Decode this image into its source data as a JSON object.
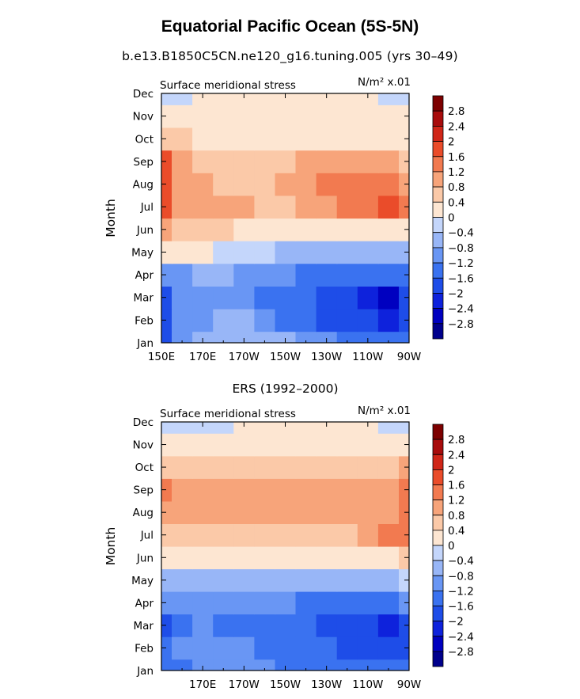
{
  "page": {
    "title": "Equatorial Pacific Ocean (5S-5N)",
    "subtitle": "b.e13.B1850C5CN.ne120_g16.tuning.005 (yrs 30–49)"
  },
  "colors": {
    "levels": [
      "#00008c",
      "#0000c0",
      "#0e22dc",
      "#1e4de8",
      "#3a72f0",
      "#6996f4",
      "#98b6f7",
      "#c4d6fb",
      "#fde6d2",
      "#fbc9a8",
      "#f7a47a",
      "#f27a50",
      "#ea4c2a",
      "#d02618",
      "#a80c0c",
      "#7d0000"
    ]
  },
  "chart_data": [
    {
      "type": "heatmap",
      "name": "model",
      "panel_label": "",
      "title": "Surface meridional stress",
      "units_label": "N/m² x.01",
      "ylabel": "Month",
      "xlabel": "",
      "x_ticks": [
        "150E",
        "170E",
        "170W",
        "150W",
        "130W",
        "110W",
        "90W"
      ],
      "y_ticks": [
        "Jan",
        "Feb",
        "Mar",
        "Apr",
        "May",
        "Jun",
        "Jul",
        "Aug",
        "Sep",
        "Oct",
        "Nov",
        "Dec"
      ],
      "longitudes": [
        150,
        160,
        170,
        180,
        190,
        200,
        210,
        220,
        230,
        240,
        250,
        260,
        270
      ],
      "contour_levels": [
        -2.8,
        -2.4,
        -2,
        -1.6,
        -1.2,
        -0.8,
        -0.4,
        0,
        0.4,
        0.8,
        1.2,
        1.6,
        2,
        2.4,
        2.8
      ],
      "colorbar_labels": [
        "2.8",
        "2.4",
        "2",
        "1.6",
        "1.2",
        "0.8",
        "0.4",
        "0",
        "−0.4",
        "−0.8",
        "−1.2",
        "−1.6",
        "−2",
        "−2.4",
        "−2.8"
      ],
      "values": [
        [
          -1.8,
          -1.0,
          -0.7,
          -0.5,
          -0.5,
          -0.6,
          -0.8,
          -1.0,
          -1.2,
          -1.4,
          -1.5,
          -1.6,
          -1.5
        ],
        [
          -1.7,
          -1.1,
          -0.9,
          -0.8,
          -0.8,
          -1.0,
          -1.3,
          -1.5,
          -1.7,
          -1.8,
          -1.9,
          -2.1,
          -1.8
        ],
        [
          -1.7,
          -1.2,
          -1.1,
          -1.1,
          -1.1,
          -1.3,
          -1.5,
          -1.6,
          -1.8,
          -2.0,
          -2.2,
          -2.5,
          -2.0
        ],
        [
          -1.0,
          -0.9,
          -0.8,
          -0.8,
          -0.9,
          -1.0,
          -1.2,
          -1.3,
          -1.5,
          -1.6,
          -1.6,
          -1.6,
          -1.4
        ],
        [
          0.3,
          0.2,
          0.1,
          -0.1,
          -0.3,
          -0.4,
          -0.5,
          -0.6,
          -0.7,
          -0.8,
          -0.8,
          -0.8,
          -0.7
        ],
        [
          0.8,
          0.6,
          0.5,
          0.4,
          0.3,
          0.2,
          0.1,
          0.0,
          0.0,
          0.1,
          0.1,
          0.1,
          0.1
        ],
        [
          1.6,
          1.0,
          0.8,
          0.8,
          0.8,
          0.7,
          0.7,
          0.8,
          0.9,
          1.2,
          1.4,
          1.6,
          1.5
        ],
        [
          1.9,
          1.0,
          0.8,
          0.7,
          0.6,
          0.7,
          0.9,
          1.0,
          1.2,
          1.3,
          1.3,
          1.4,
          1.1
        ],
        [
          1.6,
          0.9,
          0.6,
          0.5,
          0.5,
          0.6,
          0.7,
          0.8,
          0.9,
          0.9,
          0.8,
          0.8,
          0.7
        ],
        [
          0.6,
          0.4,
          0.3,
          0.3,
          0.3,
          0.3,
          0.3,
          0.3,
          0.3,
          0.3,
          0.2,
          0.2,
          0.2
        ],
        [
          0.2,
          0.2,
          0.2,
          0.2,
          0.2,
          0.2,
          0.2,
          0.2,
          0.2,
          0.2,
          0.2,
          0.2,
          0.1
        ],
        [
          -0.3,
          -0.1,
          0.1,
          0.2,
          0.2,
          0.2,
          0.2,
          0.2,
          0.2,
          0.1,
          0.1,
          -0.1,
          -0.2
        ]
      ]
    },
    {
      "type": "heatmap",
      "name": "obs",
      "panel_label": "ERS (1992–2000)",
      "title": "Surface meridional stress",
      "units_label": "N/m² x.01",
      "ylabel": "Month",
      "xlabel": "",
      "x_ticks": [
        "170E",
        "170W",
        "150W",
        "130W",
        "110W",
        "90W"
      ],
      "y_ticks": [
        "Jan",
        "Feb",
        "Mar",
        "Apr",
        "May",
        "Jun",
        "Jul",
        "Aug",
        "Sep",
        "Oct",
        "Nov",
        "Dec"
      ],
      "longitudes": [
        150,
        160,
        170,
        180,
        190,
        200,
        210,
        220,
        230,
        240,
        250,
        260,
        270
      ],
      "contour_levels": [
        -2.8,
        -2.4,
        -2,
        -1.6,
        -1.2,
        -0.8,
        -0.4,
        0,
        0.4,
        0.8,
        1.2,
        1.6,
        2,
        2.4,
        2.8
      ],
      "colorbar_labels": [
        "2.8",
        "2.4",
        "2",
        "1.6",
        "1.2",
        "0.8",
        "0.4",
        "0",
        "−0.4",
        "−0.8",
        "−1.2",
        "−1.6",
        "−2",
        "−2.4",
        "−2.8"
      ],
      "values": [
        [
          -1.4,
          -1.3,
          -1.1,
          -1.0,
          -1.1,
          -1.2,
          -1.3,
          -1.4,
          -1.5,
          -1.5,
          -1.5,
          -1.6,
          -1.6
        ],
        [
          -1.6,
          -1.2,
          -1.1,
          -1.1,
          -1.2,
          -1.3,
          -1.4,
          -1.5,
          -1.6,
          -1.7,
          -1.8,
          -1.9,
          -1.9
        ],
        [
          -1.7,
          -1.4,
          -1.2,
          -1.3,
          -1.3,
          -1.4,
          -1.5,
          -1.6,
          -1.8,
          -1.9,
          -2.0,
          -2.1,
          -1.9
        ],
        [
          -1.0,
          -1.0,
          -1.0,
          -1.0,
          -1.0,
          -1.1,
          -1.2,
          -1.3,
          -1.3,
          -1.3,
          -1.3,
          -1.3,
          -1.2
        ],
        [
          -0.6,
          -0.6,
          -0.6,
          -0.5,
          -0.5,
          -0.5,
          -0.5,
          -0.5,
          -0.5,
          -0.5,
          -0.5,
          -0.5,
          -0.4
        ],
        [
          0.3,
          0.3,
          0.2,
          0.2,
          0.2,
          0.1,
          0.0,
          0.0,
          0.0,
          0.1,
          0.2,
          0.3,
          0.4
        ],
        [
          0.6,
          0.5,
          0.5,
          0.6,
          0.6,
          0.6,
          0.5,
          0.6,
          0.6,
          0.7,
          1.0,
          1.3,
          1.4
        ],
        [
          0.8,
          0.8,
          0.9,
          0.9,
          0.9,
          0.9,
          0.9,
          0.9,
          0.9,
          0.9,
          0.9,
          1.0,
          1.2
        ],
        [
          1.3,
          1.0,
          1.0,
          1.0,
          1.0,
          1.0,
          1.0,
          1.0,
          1.0,
          0.9,
          0.9,
          1.0,
          1.3
        ],
        [
          0.6,
          0.6,
          0.6,
          0.6,
          0.6,
          0.6,
          0.6,
          0.6,
          0.6,
          0.6,
          0.6,
          0.7,
          0.8
        ],
        [
          0.2,
          0.2,
          0.2,
          0.2,
          0.3,
          0.3,
          0.3,
          0.3,
          0.2,
          0.2,
          0.2,
          0.3,
          0.3
        ],
        [
          -0.3,
          -0.2,
          -0.2,
          -0.1,
          0.0,
          0.0,
          0.0,
          0.0,
          0.0,
          0.0,
          0.0,
          -0.1,
          -0.1
        ]
      ]
    }
  ]
}
